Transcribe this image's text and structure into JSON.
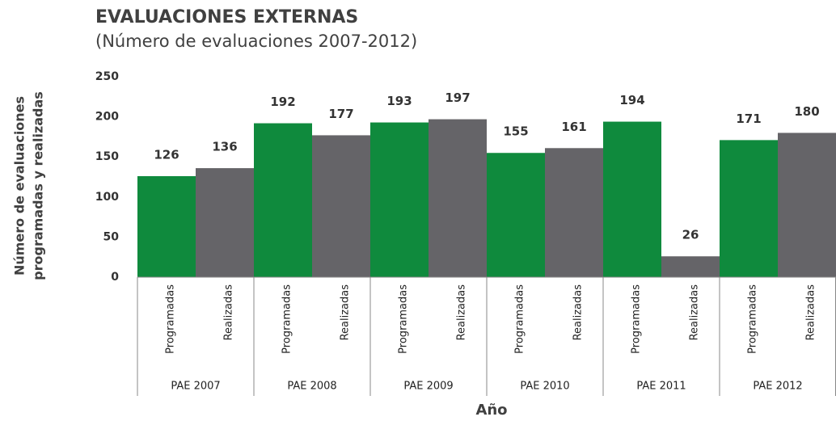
{
  "chart_data": {
    "type": "bar",
    "title": "EVALUACIONES EXTERNAS",
    "subtitle": "(Número de evaluaciones 2007-2012)",
    "y_label": [
      "Número de evaluaciones",
      "programadas y realizadas"
    ],
    "x_label": "Año",
    "categories": [
      "PAE 2007",
      "PAE 2008",
      "PAE 2009",
      "PAE 2010",
      "PAE 2011",
      "PAE 2012"
    ],
    "series": [
      {
        "name": "Programadas",
        "color": "#0f8a3d",
        "values": [
          126,
          192,
          193,
          155,
          194,
          171
        ]
      },
      {
        "name": "Realizadas",
        "color": "#656468",
        "values": [
          136,
          177,
          197,
          161,
          26,
          180
        ]
      }
    ],
    "ylim": [
      0,
      250
    ],
    "yticks": [
      0,
      50,
      100,
      150,
      200,
      250
    ],
    "grid": false
  }
}
